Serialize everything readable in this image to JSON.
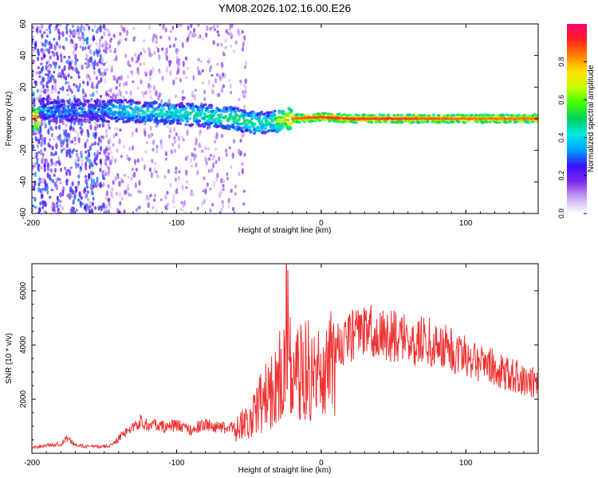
{
  "chart_data": [
    {
      "type": "heatmap",
      "title": "YM08.2026.102.16.00.E26",
      "xlabel": "Height of straight line (km)",
      "ylabel": "Frequency (Hz)",
      "xlim": [
        -200,
        150
      ],
      "ylim": [
        -60,
        60
      ],
      "x_ticks": [
        -200,
        -100,
        0,
        100
      ],
      "y_ticks": [
        -60,
        -40,
        -20,
        0,
        20,
        40,
        60
      ],
      "colorbar": {
        "label": "Normalized spectral amplitude",
        "range": [
          0,
          1
        ],
        "ticks": [
          0.0,
          0.2,
          0.4,
          0.6,
          0.8
        ],
        "stops": [
          "#ffffff",
          "#c9a8f2",
          "#7d2ae8",
          "#3a10ff",
          "#00a0ff",
          "#00e8e0",
          "#00d060",
          "#40ff00",
          "#c8ff00",
          "#ffe000",
          "#ff8000",
          "#ff2020",
          "#ff0070"
        ]
      },
      "ridge": [
        {
          "x": -195,
          "f": 6,
          "amp": 0.35
        },
        {
          "x": -180,
          "f": 5,
          "amp": 0.35
        },
        {
          "x": -160,
          "f": 5,
          "amp": 0.3
        },
        {
          "x": -140,
          "f": 5,
          "amp": 0.4
        },
        {
          "x": -120,
          "f": 4,
          "amp": 0.42
        },
        {
          "x": -100,
          "f": 3,
          "amp": 0.45
        },
        {
          "x": -80,
          "f": 2,
          "amp": 0.45
        },
        {
          "x": -60,
          "f": 0,
          "amp": 0.5
        },
        {
          "x": -45,
          "f": -3,
          "amp": 0.5
        },
        {
          "x": -35,
          "f": -2,
          "amp": 0.45
        },
        {
          "x": -20,
          "f": 0,
          "amp": 0.85
        },
        {
          "x": 0,
          "f": 1,
          "amp": 0.9
        },
        {
          "x": 20,
          "f": 0,
          "amp": 0.9
        },
        {
          "x": 60,
          "f": 0,
          "amp": 0.9
        },
        {
          "x": 100,
          "f": 0,
          "amp": 0.85
        },
        {
          "x": 150,
          "f": 0,
          "amp": 0.85
        }
      ]
    },
    {
      "type": "line",
      "xlabel": "Height of straight line (km)",
      "ylabel": "SNR (10 * v/v)",
      "xlim": [
        -200,
        150
      ],
      "ylim": [
        0,
        7000
      ],
      "x_ticks": [
        -200,
        -100,
        0,
        100
      ],
      "y_ticks": [
        2000,
        4000,
        6000
      ],
      "series": [
        {
          "name": "SNR",
          "color": "#ee3333",
          "x": [
            -200,
            -190,
            -180,
            -176,
            -170,
            -160,
            -150,
            -145,
            -140,
            -135,
            -130,
            -125,
            -120,
            -110,
            -100,
            -90,
            -80,
            -70,
            -60,
            -55,
            -50,
            -45,
            -40,
            -35,
            -30,
            -25,
            -24,
            -22,
            -20,
            -15,
            -10,
            -5,
            0,
            5,
            10,
            15,
            20,
            25,
            30,
            35,
            40,
            50,
            60,
            70,
            80,
            90,
            100,
            110,
            120,
            130,
            140,
            150
          ],
          "y": [
            200,
            300,
            350,
            600,
            300,
            250,
            250,
            300,
            550,
            800,
            1000,
            1200,
            1100,
            1000,
            1050,
            900,
            1100,
            950,
            1000,
            1200,
            1300,
            1800,
            2200,
            2500,
            3100,
            3400,
            6700,
            4000,
            3000,
            3300,
            3500,
            3200,
            3500,
            3700,
            3900,
            4200,
            4400,
            4500,
            4600,
            4600,
            4500,
            4400,
            4300,
            4250,
            4100,
            3900,
            3700,
            3500,
            3200,
            3000,
            2800,
            2600
          ]
        }
      ]
    }
  ]
}
